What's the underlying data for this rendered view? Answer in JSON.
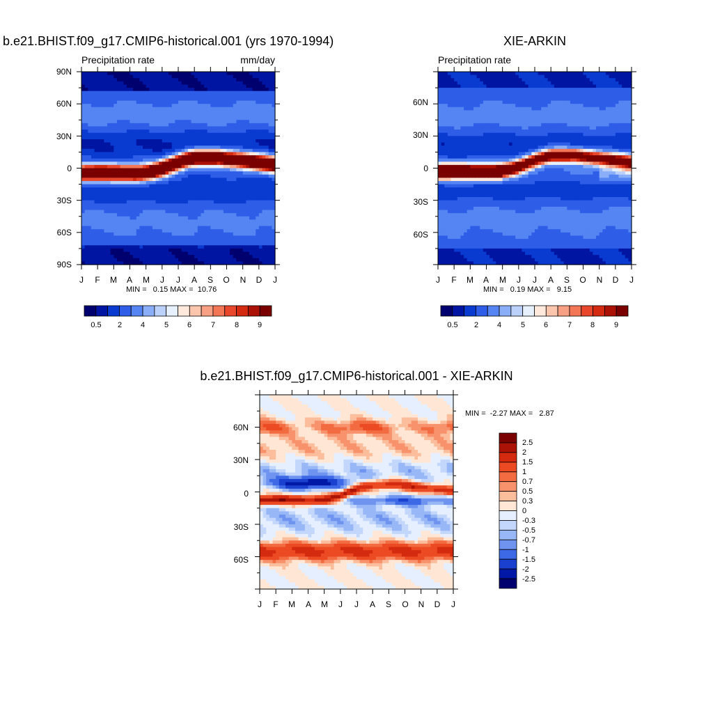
{
  "chart_data": [
    {
      "type": "heatmap",
      "title": "b.e21.BHIST.f09_g17.CMIP6-historical.001 (yrs 1970-1994)",
      "subtitle_left": "Precipitation rate",
      "subtitle_right": "mm/day",
      "x_ticks": [
        "J",
        "F",
        "M",
        "A",
        "M",
        "J",
        "J",
        "A",
        "S",
        "O",
        "N",
        "D",
        "J"
      ],
      "y_ticks": [
        "90N",
        "60N",
        "30N",
        "0",
        "30S",
        "60S",
        "90S"
      ],
      "ylim": [
        -90,
        90
      ],
      "stats": "MIN =   0.15 MAX =  10.76",
      "min": 0.15,
      "max": 10.76,
      "colorbar_labels": [
        "0.5",
        "2",
        "4",
        "5",
        "6",
        "7",
        "8",
        "9"
      ]
    },
    {
      "type": "heatmap",
      "title": "XIE-ARKIN",
      "subtitle_left": "Precipitation rate",
      "subtitle_right": "",
      "x_ticks": [
        "J",
        "F",
        "M",
        "A",
        "M",
        "J",
        "J",
        "A",
        "S",
        "O",
        "N",
        "D",
        "J"
      ],
      "y_ticks": [
        "60N",
        "30N",
        "0",
        "30S",
        "60S"
      ],
      "ylim": [
        -90,
        90
      ],
      "stats": "MIN =   0.19 MAX =   9.15",
      "min": 0.19,
      "max": 9.15,
      "colorbar_labels": [
        "0.5",
        "2",
        "4",
        "5",
        "6",
        "7",
        "8",
        "9"
      ]
    },
    {
      "type": "heatmap",
      "title": "b.e21.BHIST.f09_g17.CMIP6-historical.001 - XIE-ARKIN",
      "x_ticks": [
        "J",
        "F",
        "M",
        "A",
        "M",
        "J",
        "J",
        "A",
        "S",
        "O",
        "N",
        "D",
        "J"
      ],
      "y_ticks": [
        "60N",
        "30N",
        "0",
        "30S",
        "60S"
      ],
      "ylim": [
        -90,
        90
      ],
      "stats": "MIN =  -2.27 MAX =   2.87",
      "min": -2.27,
      "max": 2.87,
      "colorbar_labels": [
        "2.5",
        "2",
        "1.5",
        "1",
        "0.7",
        "0.5",
        "0.3",
        "0",
        "-0.3",
        "-0.5",
        "-0.7",
        "-1",
        "-1.5",
        "-2",
        "-2.5"
      ]
    }
  ],
  "colors": {
    "seq": [
      "#00006e",
      "#0016a3",
      "#0a3bd0",
      "#2e5ee8",
      "#5585f2",
      "#8aaef7",
      "#bcd1fa",
      "#e7f0fd",
      "#ffe9dc",
      "#fcc5ad",
      "#f8a083",
      "#f37655",
      "#e8472c",
      "#d42a0f",
      "#ab1105",
      "#7a0000"
    ],
    "div": [
      "#7a0000",
      "#aa1305",
      "#d42a0f",
      "#ec4a22",
      "#f36b40",
      "#f7926c",
      "#fbbd9c",
      "#ffe6d5",
      "#e5efff",
      "#c3d6fb",
      "#98b7f6",
      "#6e94f0",
      "#3e69e6",
      "#1a40cf",
      "#0018a6",
      "#00006e"
    ]
  }
}
